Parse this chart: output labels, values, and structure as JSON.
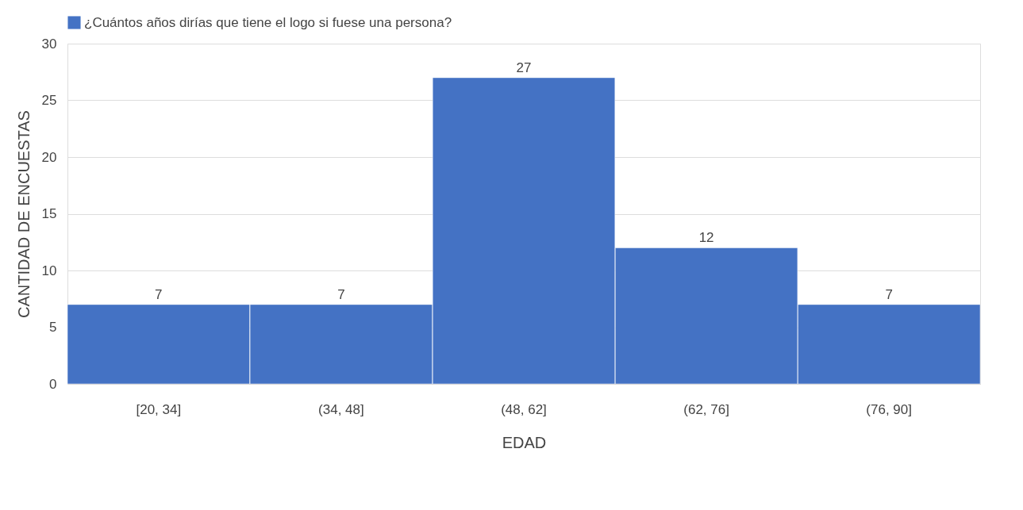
{
  "chart_data": {
    "type": "bar",
    "xlabel": "EDAD",
    "ylabel": "CANTIDAD DE ENCUESTAS",
    "categories": [
      "[20, 34]",
      "(34, 48]",
      "(48, 62]",
      "(62, 76]",
      "(76, 90]"
    ],
    "series": [
      {
        "name": "¿Cuántos años dirías que tiene el logo si fuese una persona?",
        "color": "#4472c4",
        "values": [
          7,
          7,
          27,
          12,
          7
        ]
      }
    ],
    "ylim": [
      0,
      30
    ],
    "yticks": [
      0,
      5,
      10,
      15,
      20,
      25,
      30
    ],
    "grid": "y",
    "legend": "top",
    "data_labels": true
  }
}
